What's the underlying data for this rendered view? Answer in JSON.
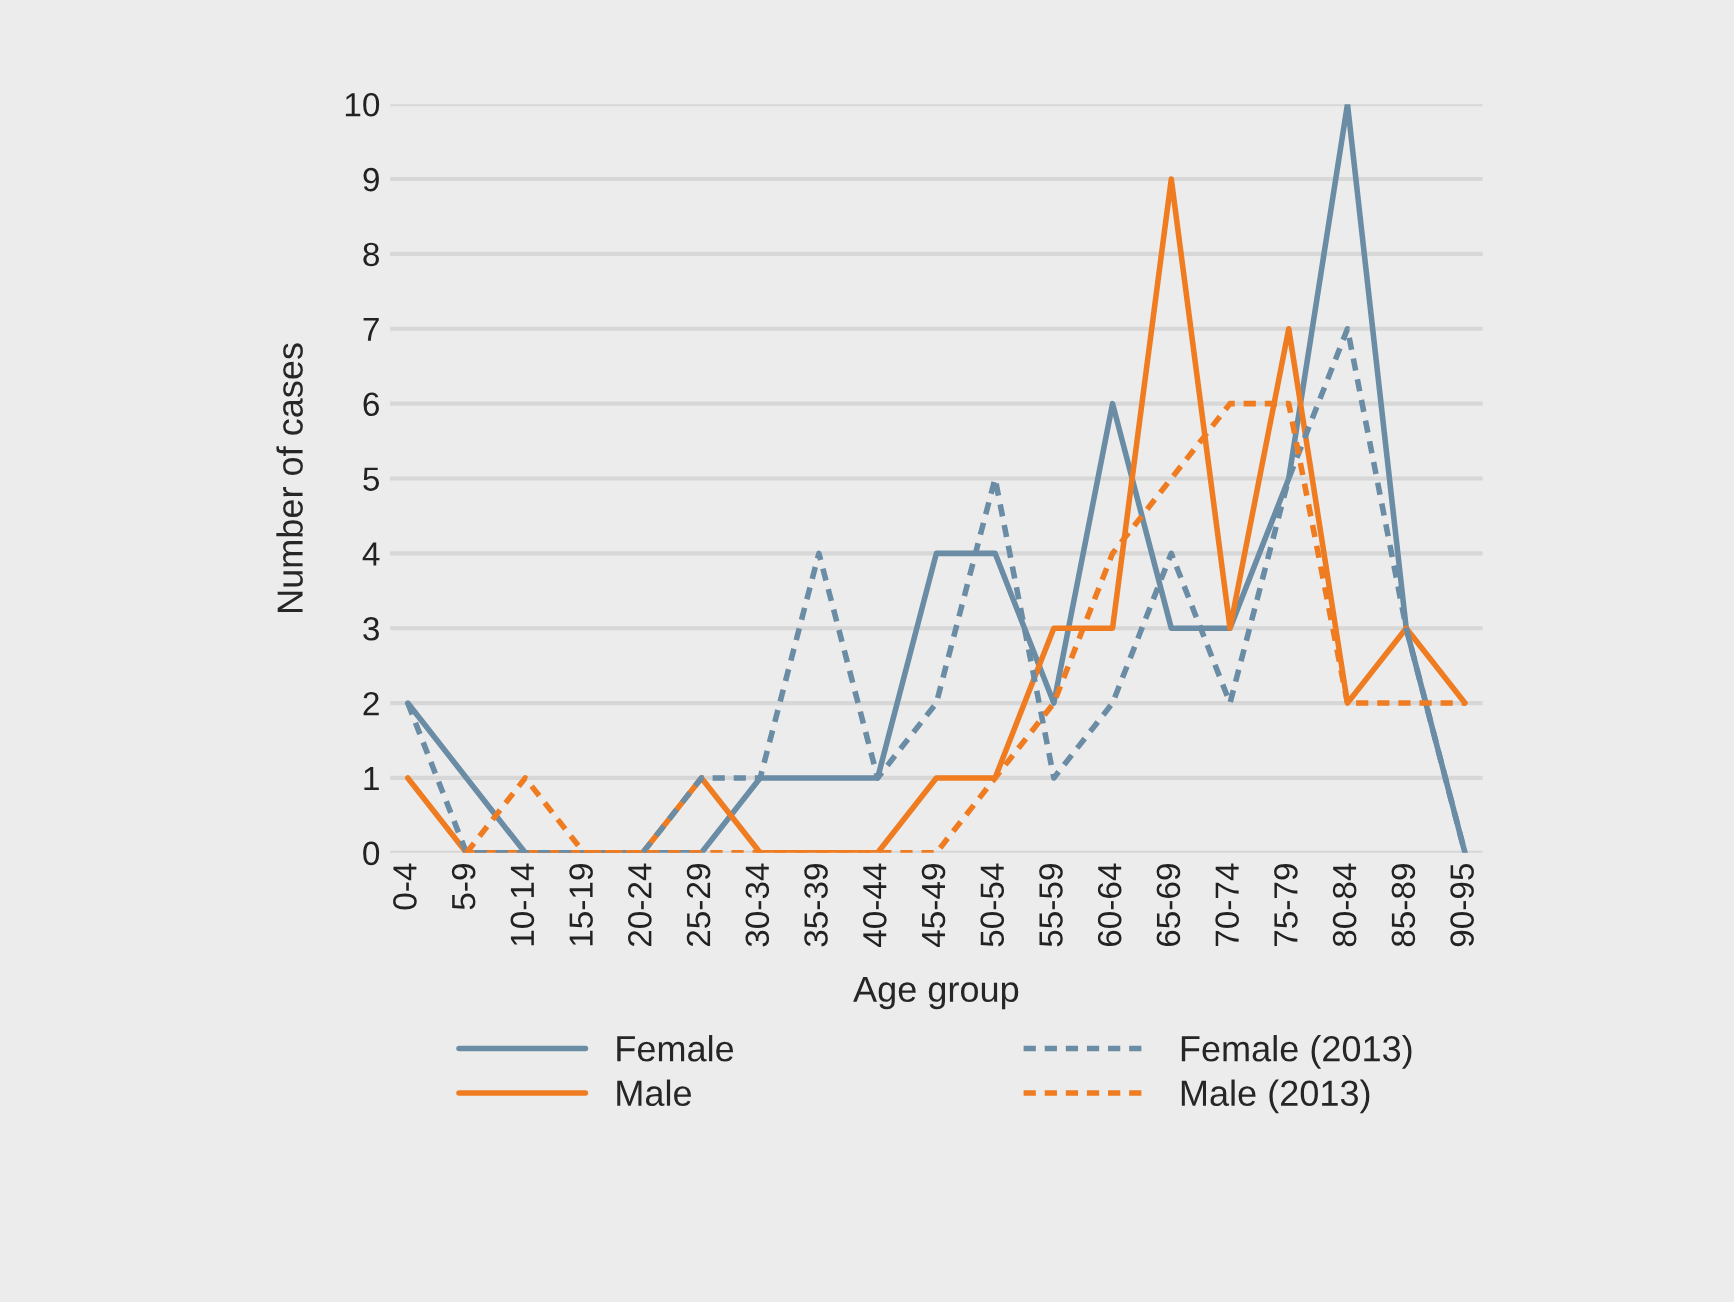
{
  "chart_data": {
    "type": "line",
    "xlabel": "Age group",
    "ylabel": "Number of cases",
    "categories": [
      "0-4",
      "5-9",
      "10-14",
      "15-19",
      "20-24",
      "25-29",
      "30-34",
      "35-39",
      "40-44",
      "45-49",
      "50-54",
      "55-59",
      "60-64",
      "65-69",
      "70-74",
      "75-79",
      "80-84",
      "85-89",
      "90-95"
    ],
    "series": [
      {
        "name": "Female",
        "color": "#6b8ca5",
        "line_style": "solid",
        "values": [
          2,
          1,
          0,
          0,
          0,
          0,
          1,
          1,
          1,
          4,
          4,
          2,
          6,
          3,
          3,
          5,
          10,
          3,
          0
        ]
      },
      {
        "name": "Male",
        "color": "#f07c22",
        "line_style": "solid",
        "values": [
          1,
          0,
          0,
          0,
          0,
          1,
          0,
          0,
          0,
          1,
          1,
          3,
          3,
          9,
          3,
          7,
          2,
          3,
          2
        ]
      },
      {
        "name": "Female (2013)",
        "color": "#6b8ca5",
        "line_style": "dotted",
        "values": [
          2,
          0,
          0,
          0,
          0,
          1,
          1,
          4,
          1,
          2,
          5,
          1,
          2,
          4,
          2,
          5,
          7,
          3,
          0
        ]
      },
      {
        "name": "Male (2013)",
        "color": "#f07c22",
        "line_style": "dotted",
        "values": [
          null,
          0,
          1,
          0,
          0,
          0,
          0,
          0,
          0,
          0,
          1,
          2,
          4,
          5,
          6,
          6,
          2,
          2,
          2
        ]
      }
    ],
    "ylim": [
      0,
      10
    ],
    "yticks": [
      0,
      1,
      2,
      3,
      4,
      5,
      6,
      7,
      8,
      9,
      10
    ],
    "grid": "y",
    "legend": "bottom"
  }
}
